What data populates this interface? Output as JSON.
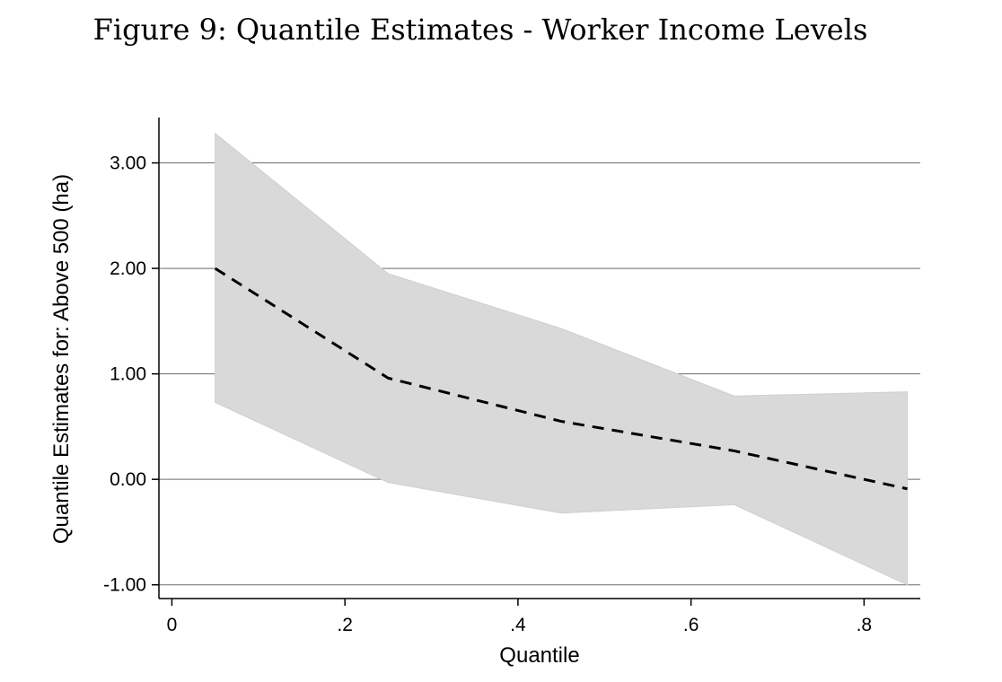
{
  "figure": {
    "title": "Figure 9: Quantile Estimates - Worker Income Levels"
  },
  "chart_data": {
    "type": "line",
    "xlabel": "Quantile",
    "ylabel": "Quantile Estimates for: Above 500 (ha)",
    "xlim": [
      -0.015,
      0.865
    ],
    "ylim": [
      -1.13,
      3.43
    ],
    "x_ticks": [
      0,
      0.2,
      0.4,
      0.6,
      0.8
    ],
    "x_tick_labels": [
      "0",
      ".2",
      ".4",
      ".6",
      ".8"
    ],
    "y_ticks": [
      -1,
      0,
      1,
      2,
      3
    ],
    "y_tick_labels": [
      "-1.00",
      "0.00",
      "1.00",
      "2.00",
      "3.00"
    ],
    "grid": "horizontal",
    "x": [
      0.05,
      0.25,
      0.45,
      0.65,
      0.85
    ],
    "series": [
      {
        "values": [
          2.0,
          0.96,
          0.55,
          0.27,
          -0.09
        ],
        "style": "dashed",
        "color": "#000000"
      }
    ],
    "confidence_band": {
      "upper": [
        3.28,
        1.95,
        1.43,
        0.79,
        0.83
      ],
      "lower": [
        0.73,
        -0.03,
        -0.32,
        -0.24,
        -1.0
      ],
      "color": "#d9d9d9"
    }
  }
}
